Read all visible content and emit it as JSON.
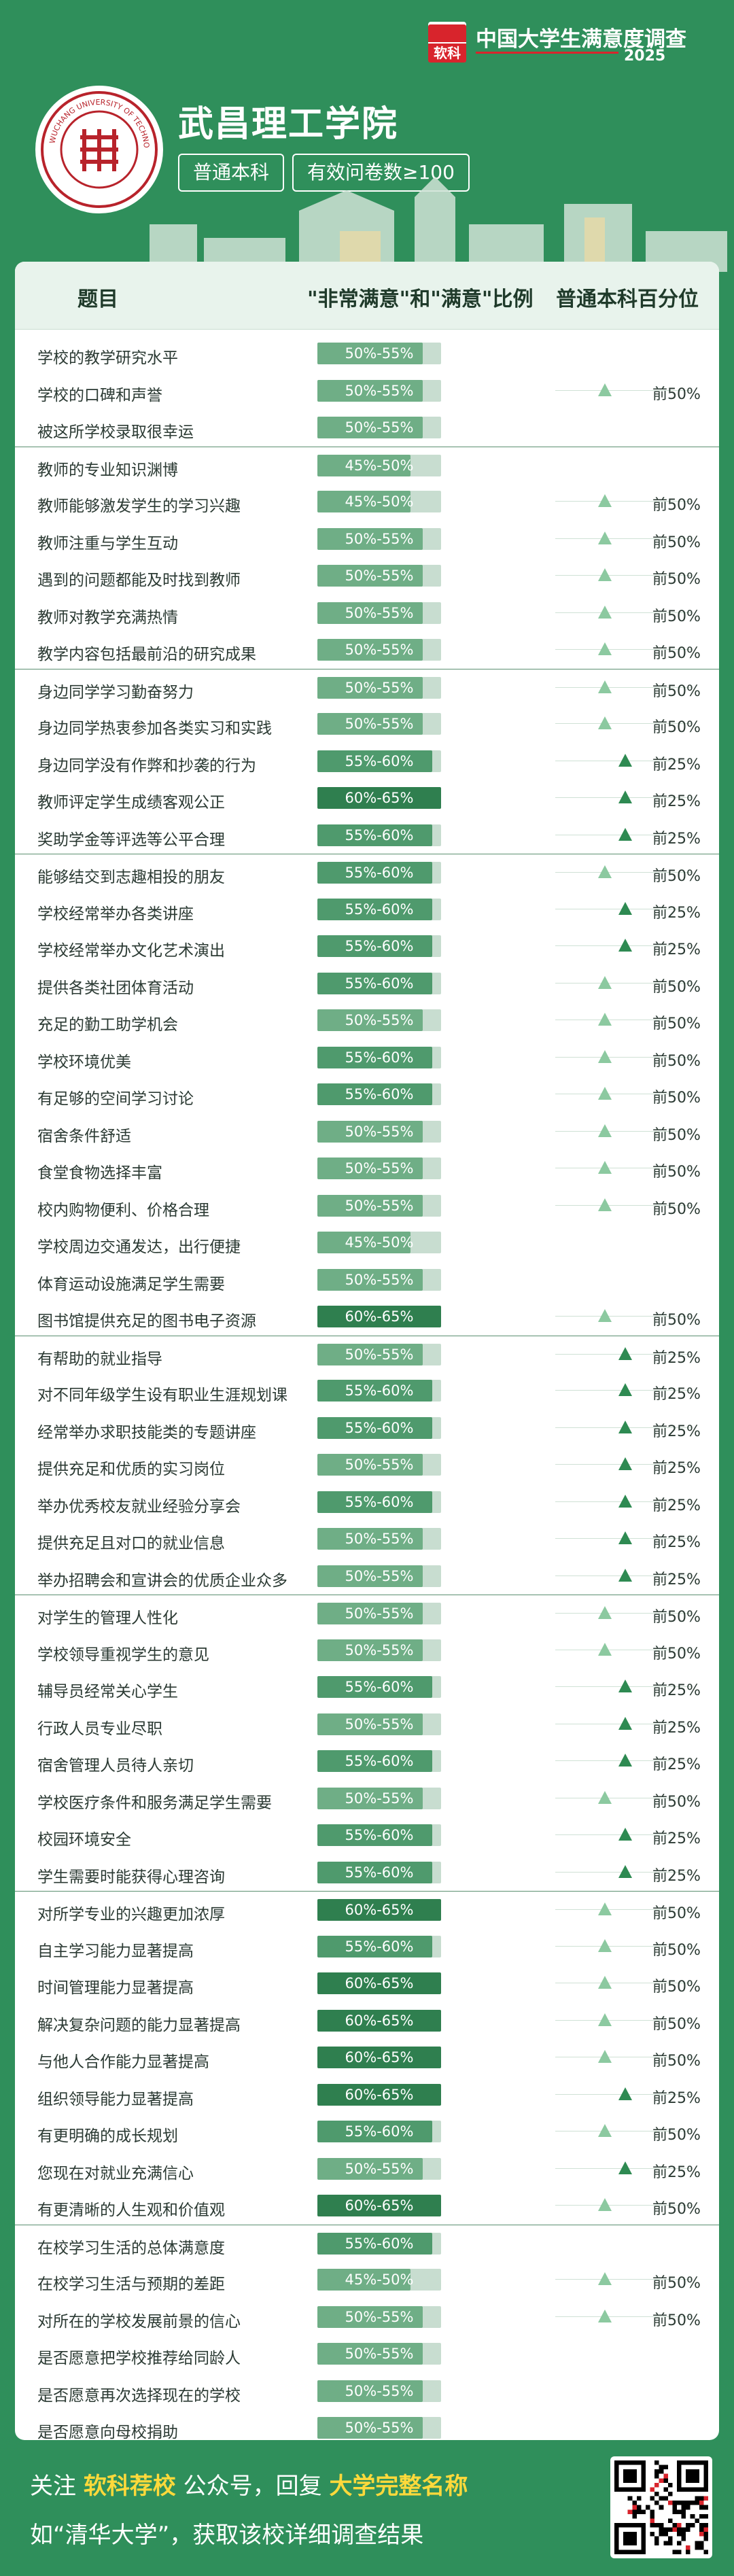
{
  "header": {
    "brand_title": "中国大学生满意度调查",
    "brand_logo_text": "软科",
    "brand_year": "2025",
    "university": "武昌理工学院",
    "tag_level": "普通本科",
    "tag_samples": "有效问卷数≥100",
    "seal_text": "WUCHANG UNIVERSITY OF TECHNOLOGY"
  },
  "table": {
    "col_item": "题目",
    "col_ratio": "\"非常满意\"和\"满意\"比例",
    "col_percentile": "普通本科百分位",
    "colors": {
      "light": "#6fae86",
      "mid": "#4f9a6d",
      "dark": "#2f7f4f",
      "tri_light": "#8cc9a0",
      "tri_dark": "#2e8a52"
    },
    "rows": [
      {
        "g": 0,
        "label": "学校的教学研究水平",
        "ratio": "50%-55%",
        "lvl": 0.53,
        "pct": "",
        "up": false
      },
      {
        "g": 0,
        "label": "学校的口碑和声誉",
        "ratio": "50%-55%",
        "lvl": 0.53,
        "pct": "前50%",
        "up": false
      },
      {
        "g": 0,
        "label": "被这所学校录取很幸运",
        "ratio": "50%-55%",
        "lvl": 0.53,
        "pct": "",
        "up": false
      },
      {
        "g": 1,
        "label": "教师的专业知识渊博",
        "ratio": "45%-50%",
        "lvl": 0.47,
        "pct": "",
        "up": false
      },
      {
        "g": 1,
        "label": "教师能够激发学生的学习兴趣",
        "ratio": "45%-50%",
        "lvl": 0.47,
        "pct": "前50%",
        "up": false
      },
      {
        "g": 1,
        "label": "教师注重与学生互动",
        "ratio": "50%-55%",
        "lvl": 0.53,
        "pct": "前50%",
        "up": false
      },
      {
        "g": 1,
        "label": "遇到的问题都能及时找到教师",
        "ratio": "50%-55%",
        "lvl": 0.53,
        "pct": "前50%",
        "up": false
      },
      {
        "g": 1,
        "label": "教师对教学充满热情",
        "ratio": "50%-55%",
        "lvl": 0.53,
        "pct": "前50%",
        "up": false
      },
      {
        "g": 1,
        "label": "教学内容包括最前沿的研究成果",
        "ratio": "50%-55%",
        "lvl": 0.53,
        "pct": "前50%",
        "up": false
      },
      {
        "g": 2,
        "label": "身边同学学习勤奋努力",
        "ratio": "50%-55%",
        "lvl": 0.53,
        "pct": "前50%",
        "up": false
      },
      {
        "g": 2,
        "label": "身边同学热衷参加各类实习和实践",
        "ratio": "50%-55%",
        "lvl": 0.53,
        "pct": "前50%",
        "up": false
      },
      {
        "g": 2,
        "label": "身边同学没有作弊和抄袭的行为",
        "ratio": "55%-60%",
        "lvl": 0.58,
        "pct": "前25%",
        "up": true
      },
      {
        "g": 2,
        "label": "教师评定学生成绩客观公正",
        "ratio": "60%-65%",
        "lvl": 0.63,
        "pct": "前25%",
        "up": true
      },
      {
        "g": 2,
        "label": "奖助学金等评选等公平合理",
        "ratio": "55%-60%",
        "lvl": 0.58,
        "pct": "前25%",
        "up": true
      },
      {
        "g": 3,
        "label": "能够结交到志趣相投的朋友",
        "ratio": "55%-60%",
        "lvl": 0.58,
        "pct": "前50%",
        "up": false
      },
      {
        "g": 3,
        "label": "学校经常举办各类讲座",
        "ratio": "55%-60%",
        "lvl": 0.58,
        "pct": "前25%",
        "up": true
      },
      {
        "g": 3,
        "label": "学校经常举办文化艺术演出",
        "ratio": "55%-60%",
        "lvl": 0.58,
        "pct": "前25%",
        "up": true
      },
      {
        "g": 3,
        "label": "提供各类社团体育活动",
        "ratio": "55%-60%",
        "lvl": 0.58,
        "pct": "前50%",
        "up": false
      },
      {
        "g": 3,
        "label": "充足的勤工助学机会",
        "ratio": "50%-55%",
        "lvl": 0.53,
        "pct": "前50%",
        "up": false
      },
      {
        "g": 3,
        "label": "学校环境优美",
        "ratio": "55%-60%",
        "lvl": 0.58,
        "pct": "前50%",
        "up": false
      },
      {
        "g": 3,
        "label": "有足够的空间学习讨论",
        "ratio": "55%-60%",
        "lvl": 0.58,
        "pct": "前50%",
        "up": false
      },
      {
        "g": 3,
        "label": "宿舍条件舒适",
        "ratio": "50%-55%",
        "lvl": 0.53,
        "pct": "前50%",
        "up": false
      },
      {
        "g": 3,
        "label": "食堂食物选择丰富",
        "ratio": "50%-55%",
        "lvl": 0.53,
        "pct": "前50%",
        "up": false
      },
      {
        "g": 3,
        "label": "校内购物便利、价格合理",
        "ratio": "50%-55%",
        "lvl": 0.53,
        "pct": "前50%",
        "up": false
      },
      {
        "g": 3,
        "label": "学校周边交通发达，出行便捷",
        "ratio": "45%-50%",
        "lvl": 0.47,
        "pct": "",
        "up": false
      },
      {
        "g": 3,
        "label": "体育运动设施满足学生需要",
        "ratio": "50%-55%",
        "lvl": 0.53,
        "pct": "",
        "up": false
      },
      {
        "g": 3,
        "label": "图书馆提供充足的图书电子资源",
        "ratio": "60%-65%",
        "lvl": 0.63,
        "pct": "前50%",
        "up": false
      },
      {
        "g": 4,
        "label": "有帮助的就业指导",
        "ratio": "50%-55%",
        "lvl": 0.53,
        "pct": "前25%",
        "up": true
      },
      {
        "g": 4,
        "label": "对不同年级学生设有职业生涯规划课",
        "ratio": "55%-60%",
        "lvl": 0.58,
        "pct": "前25%",
        "up": true
      },
      {
        "g": 4,
        "label": "经常举办求职技能类的专题讲座",
        "ratio": "55%-60%",
        "lvl": 0.58,
        "pct": "前25%",
        "up": true
      },
      {
        "g": 4,
        "label": "提供充足和优质的实习岗位",
        "ratio": "50%-55%",
        "lvl": 0.53,
        "pct": "前25%",
        "up": true
      },
      {
        "g": 4,
        "label": "举办优秀校友就业经验分享会",
        "ratio": "55%-60%",
        "lvl": 0.58,
        "pct": "前25%",
        "up": true
      },
      {
        "g": 4,
        "label": "提供充足且对口的就业信息",
        "ratio": "50%-55%",
        "lvl": 0.53,
        "pct": "前25%",
        "up": true
      },
      {
        "g": 4,
        "label": "举办招聘会和宣讲会的优质企业众多",
        "ratio": "50%-55%",
        "lvl": 0.53,
        "pct": "前25%",
        "up": true
      },
      {
        "g": 5,
        "label": "对学生的管理人性化",
        "ratio": "50%-55%",
        "lvl": 0.53,
        "pct": "前50%",
        "up": false
      },
      {
        "g": 5,
        "label": "学校领导重视学生的意见",
        "ratio": "50%-55%",
        "lvl": 0.53,
        "pct": "前50%",
        "up": false
      },
      {
        "g": 5,
        "label": "辅导员经常关心学生",
        "ratio": "55%-60%",
        "lvl": 0.58,
        "pct": "前25%",
        "up": true
      },
      {
        "g": 5,
        "label": "行政人员专业尽职",
        "ratio": "50%-55%",
        "lvl": 0.53,
        "pct": "前25%",
        "up": true
      },
      {
        "g": 5,
        "label": "宿舍管理人员待人亲切",
        "ratio": "55%-60%",
        "lvl": 0.58,
        "pct": "前25%",
        "up": true
      },
      {
        "g": 5,
        "label": "学校医疗条件和服务满足学生需要",
        "ratio": "50%-55%",
        "lvl": 0.53,
        "pct": "前50%",
        "up": false
      },
      {
        "g": 5,
        "label": "校园环境安全",
        "ratio": "55%-60%",
        "lvl": 0.58,
        "pct": "前25%",
        "up": true
      },
      {
        "g": 5,
        "label": "学生需要时能获得心理咨询",
        "ratio": "55%-60%",
        "lvl": 0.58,
        "pct": "前25%",
        "up": true
      },
      {
        "g": 6,
        "label": "对所学专业的兴趣更加浓厚",
        "ratio": "60%-65%",
        "lvl": 0.63,
        "pct": "前50%",
        "up": false
      },
      {
        "g": 6,
        "label": "自主学习能力显著提高",
        "ratio": "55%-60%",
        "lvl": 0.58,
        "pct": "前50%",
        "up": false
      },
      {
        "g": 6,
        "label": "时间管理能力显著提高",
        "ratio": "60%-65%",
        "lvl": 0.63,
        "pct": "前50%",
        "up": false
      },
      {
        "g": 6,
        "label": "解决复杂问题的能力显著提高",
        "ratio": "60%-65%",
        "lvl": 0.63,
        "pct": "前50%",
        "up": false
      },
      {
        "g": 6,
        "label": "与他人合作能力显著提高",
        "ratio": "60%-65%",
        "lvl": 0.63,
        "pct": "前50%",
        "up": false
      },
      {
        "g": 6,
        "label": "组织领导能力显著提高",
        "ratio": "60%-65%",
        "lvl": 0.63,
        "pct": "前25%",
        "up": true
      },
      {
        "g": 6,
        "label": "有更明确的成长规划",
        "ratio": "55%-60%",
        "lvl": 0.58,
        "pct": "前50%",
        "up": false
      },
      {
        "g": 6,
        "label": "您现在对就业充满信心",
        "ratio": "50%-55%",
        "lvl": 0.53,
        "pct": "前25%",
        "up": true
      },
      {
        "g": 6,
        "label": "有更清晰的人生观和价值观",
        "ratio": "60%-65%",
        "lvl": 0.63,
        "pct": "前50%",
        "up": false
      },
      {
        "g": 7,
        "label": "在校学习生活的总体满意度",
        "ratio": "55%-60%",
        "lvl": 0.58,
        "pct": "",
        "up": false
      },
      {
        "g": 7,
        "label": "在校学习生活与预期的差距",
        "ratio": "45%-50%",
        "lvl": 0.47,
        "pct": "前50%",
        "up": false
      },
      {
        "g": 7,
        "label": "对所在的学校发展前景的信心",
        "ratio": "50%-55%",
        "lvl": 0.53,
        "pct": "前50%",
        "up": false
      },
      {
        "g": 7,
        "label": "是否愿意把学校推荐给同龄人",
        "ratio": "50%-55%",
        "lvl": 0.53,
        "pct": "",
        "up": false
      },
      {
        "g": 7,
        "label": "是否愿意再次选择现在的学校",
        "ratio": "50%-55%",
        "lvl": 0.53,
        "pct": "",
        "up": false
      },
      {
        "g": 7,
        "label": "是否愿意向母校捐助",
        "ratio": "50%-55%",
        "lvl": 0.53,
        "pct": "",
        "up": false
      }
    ]
  },
  "footer": {
    "l1_a": "关注 ",
    "l1_b": "软科荐校",
    "l1_c": " 公众号，回复 ",
    "l1_d": "大学完整名称",
    "l2": "如“清华大学”，获取该校详细调查结果"
  }
}
